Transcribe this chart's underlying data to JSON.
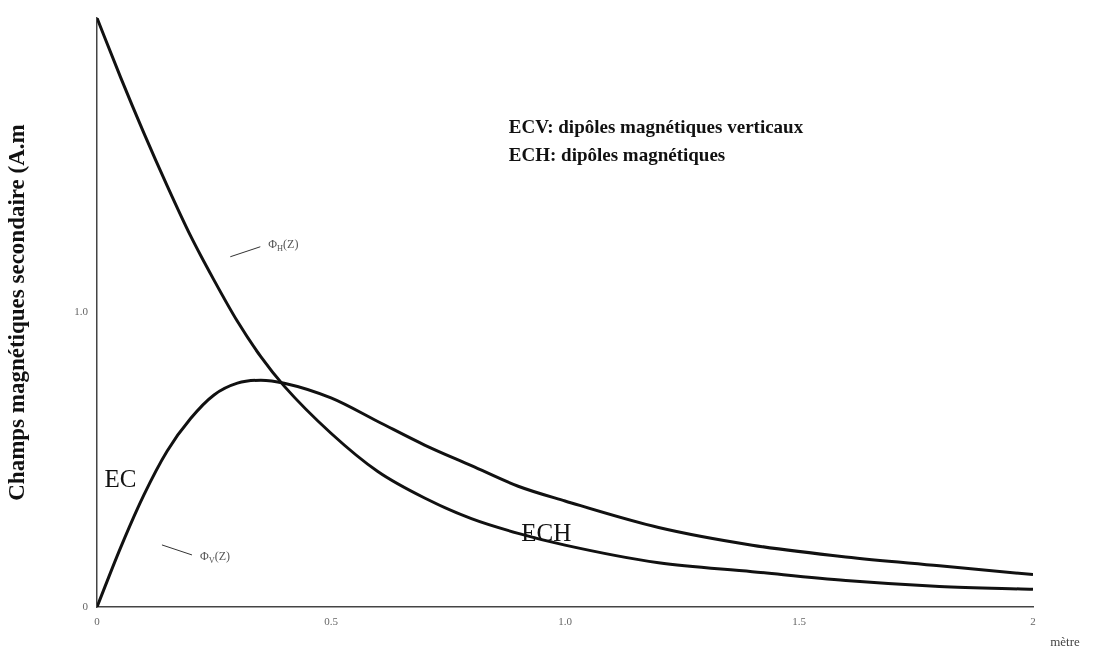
{
  "chart_data": {
    "type": "line",
    "xlabel": "mètre",
    "ylabel": "Champs magnétiques secondaire (A.m",
    "x": [
      0,
      0.05,
      0.1,
      0.15,
      0.2,
      0.25,
      0.3,
      0.35,
      0.4,
      0.5,
      0.6,
      0.7,
      0.8,
      0.9,
      1.0,
      1.2,
      1.4,
      1.6,
      1.8,
      2.0
    ],
    "series": [
      {
        "color": "#111111",
        "values": [
          2.0,
          1.8,
          1.61,
          1.43,
          1.26,
          1.11,
          0.97,
          0.85,
          0.75,
          0.59,
          0.46,
          0.37,
          0.3,
          0.25,
          0.21,
          0.15,
          0.12,
          0.09,
          0.07,
          0.06
        ]
      },
      {
        "color": "#111111",
        "values": [
          0,
          0.2,
          0.38,
          0.53,
          0.64,
          0.72,
          0.76,
          0.77,
          0.76,
          0.71,
          0.63,
          0.55,
          0.48,
          0.41,
          0.36,
          0.27,
          0.21,
          0.17,
          0.14,
          0.11
        ]
      }
    ],
    "xlim": [
      0,
      2
    ],
    "xticks": [
      0,
      0.5,
      {
        "value": 1,
        "label": "1.0"
      },
      1.5,
      2
    ],
    "ylim": [
      0,
      2
    ],
    "yticks": [
      0,
      {
        "value": 1,
        "label": "1.0"
      }
    ],
    "grid": false,
    "legend": false,
    "marker": "none",
    "line_style": "solid",
    "annotations": [
      "ECV: dipôles magnétiques verticaux",
      "ECH: dipôles magnétiques",
      "Φ$_{H}$(Z)",
      "Φ$_{V}$(Z)",
      "EC",
      {
        "text": "ECH",
        "x": 0.96,
        "y": 0.245
      }
    ]
  }
}
